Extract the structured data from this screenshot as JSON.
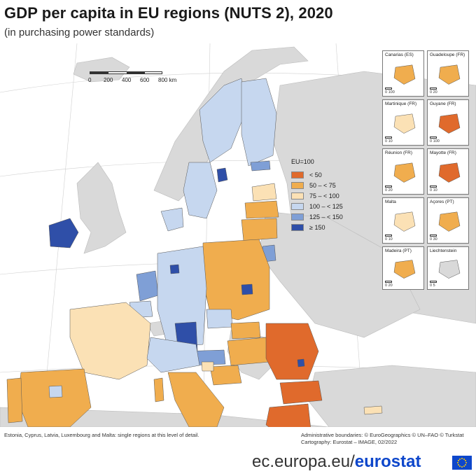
{
  "title": "GDP per capita in EU regions (NUTS 2), 2020",
  "subtitle": "(in purchasing power standards)",
  "scale_bar": {
    "ticks": [
      "0",
      "200",
      "400",
      "600",
      "800 km"
    ]
  },
  "legend": {
    "title": "EU=100",
    "items": [
      {
        "label": "< 50",
        "color": "#e06a2c"
      },
      {
        "label": "50 – < 75",
        "color": "#f0ad4e"
      },
      {
        "label": "75 – < 100",
        "color": "#fbe1b5"
      },
      {
        "label": "100 – < 125",
        "color": "#c6d7ef"
      },
      {
        "label": "125 – < 150",
        "color": "#7f9fd6"
      },
      {
        "label": "≥ 150",
        "color": "#2f4fa8"
      }
    ]
  },
  "colors": {
    "sea": "#ffffff",
    "non_eu_land": "#d9d9d9",
    "border": "#555555"
  },
  "insets": [
    {
      "label": "Canarias (ES)",
      "scale": "0   100",
      "class": "50 – < 75"
    },
    {
      "label": "Guadeloupe (FR)",
      "scale": "0   20",
      "class": "50 – < 75"
    },
    {
      "label": "Martinique (FR)",
      "scale": "0   10",
      "class": "75 – < 100"
    },
    {
      "label": "Guyane (FR)",
      "scale": "0   100",
      "class": "< 50"
    },
    {
      "label": "Réunion (FR)",
      "scale": "0   20",
      "class": "50 – < 75"
    },
    {
      "label": "Mayotte (FR)",
      "scale": "0   10",
      "class": "< 50"
    },
    {
      "label": "Malta",
      "scale": "0   10",
      "class": "75 – < 100"
    },
    {
      "label": "Açores (PT)",
      "scale": "0   30",
      "class": "50 – < 75"
    },
    {
      "label": "Madeira (PT)",
      "scale": "0   20",
      "class": "50 – < 75"
    },
    {
      "label": "Liechtenstein",
      "scale": "0   5",
      "class": "non-EU"
    }
  ],
  "notes": {
    "left": "Estonia, Cyprus, Latvia, Luxembourg and Malta: single regions at this level of detail.",
    "right_line1": "Administrative boundaries: © EuroGeographics © UN–FAO © Turkstat",
    "right_line2": "Cartography: Eurostat – IMAGE, 02/2022"
  },
  "footer": {
    "url_prefix": "ec.europa.eu/",
    "url_brand": "eurostat"
  }
}
